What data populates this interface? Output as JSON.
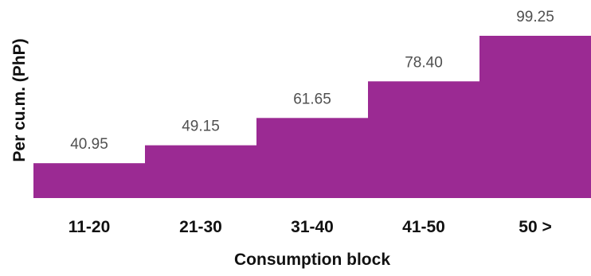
{
  "chart_data": {
    "type": "bar",
    "title": "",
    "xlabel": "Consumption block",
    "ylabel": "Per cu.m. (PhP)",
    "categories": [
      "11-20",
      "21-30",
      "31-40",
      "41-50",
      "50 >"
    ],
    "values": [
      40.95,
      49.15,
      61.65,
      78.4,
      99.25
    ],
    "value_labels": [
      "40.95",
      "49.15",
      "61.65",
      "78.40",
      "99.25"
    ],
    "ylim": [
      25,
      99.25
    ],
    "bar_color": "#9b2a93",
    "grid": false,
    "legend": "none",
    "bar_gap": "none"
  }
}
